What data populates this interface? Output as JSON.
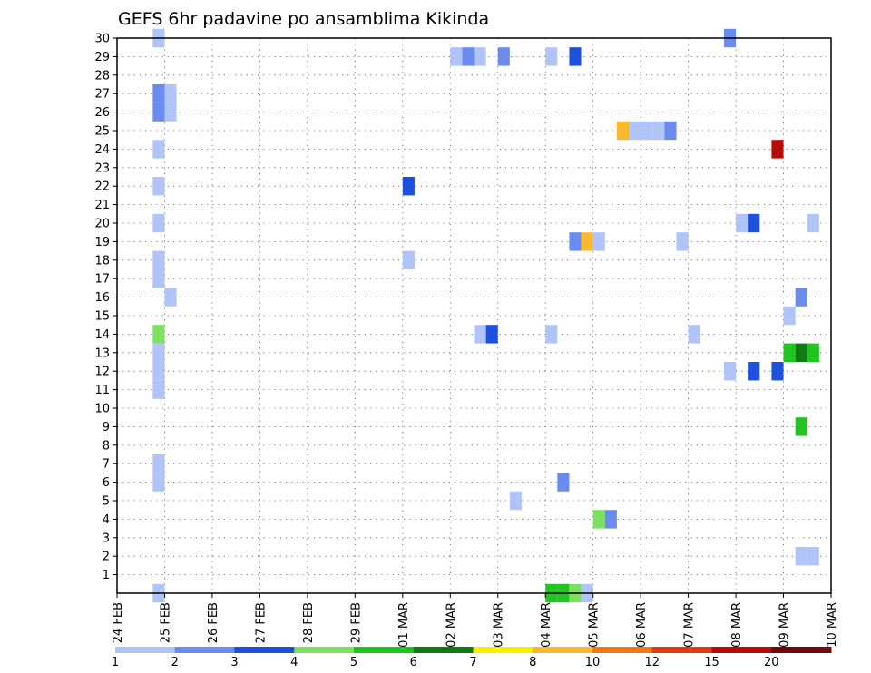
{
  "chart_data": {
    "type": "heatmap",
    "title": "GEFS 6hr padavine po ansamblima Kikinda",
    "y_ticks": [
      1,
      2,
      3,
      4,
      5,
      6,
      7,
      8,
      9,
      10,
      11,
      12,
      13,
      14,
      15,
      16,
      17,
      18,
      19,
      20,
      21,
      22,
      23,
      24,
      25,
      26,
      27,
      28,
      29,
      30
    ],
    "ylim": [
      0,
      30
    ],
    "x_ticks": [
      "24 FEB",
      "25 FEB",
      "26 FEB",
      "27 FEB",
      "28 FEB",
      "29 FEB",
      "01 MAR",
      "02 MAR",
      "03 MAR",
      "04 MAR",
      "05 MAR",
      "06 MAR",
      "07 MAR",
      "08 MAR",
      "09 MAR",
      "10 MAR"
    ],
    "xlim": [
      0,
      15
    ],
    "grid": true,
    "colorbar": {
      "labels": [
        "1",
        "2",
        "3",
        "4",
        "5",
        "6",
        "7",
        "8",
        "10",
        "12",
        "15",
        "20"
      ],
      "colors": [
        "#b0c4f8",
        "#6a8cf0",
        "#1e50dc",
        "#7ee060",
        "#22c422",
        "#127a12",
        "#f4f000",
        "#f8b830",
        "#f07818",
        "#e03c14",
        "#b40a0a",
        "#700a0a"
      ]
    },
    "cells": [
      {
        "x": 0.75,
        "y": 0,
        "c": 0
      },
      {
        "x": 0.75,
        "y": 30,
        "c": 0
      },
      {
        "x": 0.75,
        "y": 26,
        "c": 1
      },
      {
        "x": 0.75,
        "y": 27,
        "c": 1
      },
      {
        "x": 1.0,
        "y": 26,
        "c": 0
      },
      {
        "x": 1.0,
        "y": 27,
        "c": 0
      },
      {
        "x": 0.75,
        "y": 24,
        "c": 0
      },
      {
        "x": 0.75,
        "y": 22,
        "c": 0
      },
      {
        "x": 0.75,
        "y": 20,
        "c": 0
      },
      {
        "x": 0.75,
        "y": 18,
        "c": 0
      },
      {
        "x": 0.75,
        "y": 17,
        "c": 0
      },
      {
        "x": 1.0,
        "y": 16,
        "c": 0
      },
      {
        "x": 0.75,
        "y": 14,
        "c": 3
      },
      {
        "x": 0.75,
        "y": 13,
        "c": 0
      },
      {
        "x": 0.75,
        "y": 12,
        "c": 0
      },
      {
        "x": 0.75,
        "y": 11,
        "c": 0
      },
      {
        "x": 0.75,
        "y": 7,
        "c": 0
      },
      {
        "x": 0.75,
        "y": 6,
        "c": 0
      },
      {
        "x": 7.0,
        "y": 29,
        "c": 0
      },
      {
        "x": 7.25,
        "y": 29,
        "c": 1
      },
      {
        "x": 7.5,
        "y": 29,
        "c": 0
      },
      {
        "x": 8.0,
        "y": 29,
        "c": 1
      },
      {
        "x": 9.0,
        "y": 29,
        "c": 0
      },
      {
        "x": 9.5,
        "y": 29,
        "c": 2
      },
      {
        "x": 12.75,
        "y": 30,
        "c": 1
      },
      {
        "x": 10.5,
        "y": 25,
        "c": 7
      },
      {
        "x": 10.75,
        "y": 25,
        "c": 0
      },
      {
        "x": 11.0,
        "y": 25,
        "c": 0
      },
      {
        "x": 11.25,
        "y": 25,
        "c": 0
      },
      {
        "x": 11.5,
        "y": 25,
        "c": 1
      },
      {
        "x": 13.75,
        "y": 24,
        "c": 10
      },
      {
        "x": 6.0,
        "y": 22,
        "c": 2
      },
      {
        "x": 13.0,
        "y": 20,
        "c": 0
      },
      {
        "x": 13.25,
        "y": 20,
        "c": 2
      },
      {
        "x": 14.5,
        "y": 20,
        "c": 0
      },
      {
        "x": 9.5,
        "y": 19,
        "c": 1
      },
      {
        "x": 9.75,
        "y": 19,
        "c": 7
      },
      {
        "x": 10.0,
        "y": 19,
        "c": 0
      },
      {
        "x": 11.75,
        "y": 19,
        "c": 0
      },
      {
        "x": 6.0,
        "y": 18,
        "c": 0
      },
      {
        "x": 14.25,
        "y": 16,
        "c": 1
      },
      {
        "x": 14.0,
        "y": 15,
        "c": 0
      },
      {
        "x": 7.5,
        "y": 14,
        "c": 0
      },
      {
        "x": 7.75,
        "y": 14,
        "c": 2
      },
      {
        "x": 9.0,
        "y": 14,
        "c": 0
      },
      {
        "x": 12.0,
        "y": 14,
        "c": 0
      },
      {
        "x": 14.0,
        "y": 13,
        "c": 4
      },
      {
        "x": 14.25,
        "y": 13,
        "c": 5
      },
      {
        "x": 14.5,
        "y": 13,
        "c": 4
      },
      {
        "x": 12.75,
        "y": 12,
        "c": 0
      },
      {
        "x": 13.25,
        "y": 12,
        "c": 2
      },
      {
        "x": 13.75,
        "y": 12,
        "c": 2
      },
      {
        "x": 14.25,
        "y": 9,
        "c": 4
      },
      {
        "x": 9.25,
        "y": 6,
        "c": 1
      },
      {
        "x": 8.25,
        "y": 5,
        "c": 0
      },
      {
        "x": 10.0,
        "y": 4,
        "c": 3
      },
      {
        "x": 10.25,
        "y": 4,
        "c": 1
      },
      {
        "x": 14.25,
        "y": 2,
        "c": 0
      },
      {
        "x": 14.5,
        "y": 2,
        "c": 0
      },
      {
        "x": 9.0,
        "y": 0,
        "c": 4
      },
      {
        "x": 9.25,
        "y": 0,
        "c": 4
      },
      {
        "x": 9.5,
        "y": 0,
        "c": 3
      },
      {
        "x": 9.75,
        "y": 0,
        "c": 0
      }
    ]
  }
}
